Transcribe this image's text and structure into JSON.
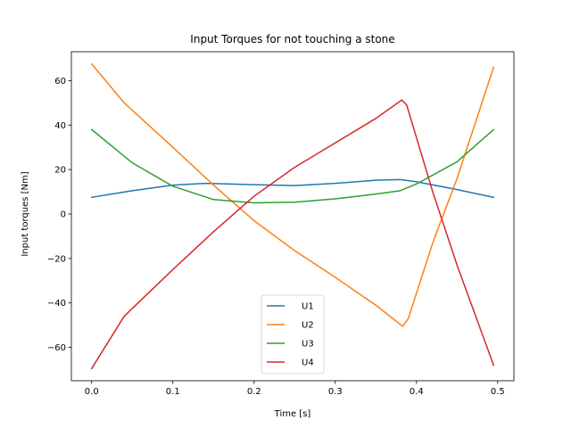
{
  "chart_data": {
    "type": "line",
    "title": "Input Torques for not touching a stone",
    "xlabel": "Time [s]",
    "ylabel": "Input torques [Nm]",
    "xlim": [
      -0.025,
      0.52
    ],
    "ylim": [
      -75,
      73
    ],
    "xticks": [
      0.0,
      0.1,
      0.2,
      0.3,
      0.4,
      0.5
    ],
    "xtick_labels": [
      "0.0",
      "0.1",
      "0.2",
      "0.3",
      "0.4",
      "0.5"
    ],
    "yticks": [
      -60,
      -40,
      -20,
      0,
      20,
      40,
      60
    ],
    "ytick_labels": [
      "−60",
      "−40",
      "−20",
      "0",
      "20",
      "40",
      "60"
    ],
    "grid": false,
    "legend_position": "bottom-center",
    "series": [
      {
        "name": "U1",
        "color": "#1f77b4",
        "x": [
          0.0,
          0.05,
          0.1,
          0.14,
          0.2,
          0.25,
          0.3,
          0.35,
          0.38,
          0.4,
          0.45,
          0.495
        ],
        "y": [
          7.5,
          10.5,
          13,
          13.8,
          13.2,
          12.8,
          13.8,
          15.2,
          15.5,
          14.5,
          11,
          7.5
        ]
      },
      {
        "name": "U2",
        "color": "#ff7f0e",
        "x": [
          0.0,
          0.04,
          0.1,
          0.15,
          0.2,
          0.25,
          0.3,
          0.35,
          0.383,
          0.39,
          0.42,
          0.45,
          0.495
        ],
        "y": [
          67.5,
          50,
          30,
          13,
          -3,
          -16.5,
          -28.5,
          -41,
          -50.5,
          -47,
          -13,
          16,
          66
        ]
      },
      {
        "name": "U3",
        "color": "#2ca02c",
        "x": [
          0.0,
          0.05,
          0.1,
          0.15,
          0.2,
          0.25,
          0.3,
          0.35,
          0.38,
          0.4,
          0.45,
          0.495
        ],
        "y": [
          38,
          23,
          12.5,
          6.5,
          5,
          5.3,
          6.8,
          9,
          10.5,
          13.5,
          23.5,
          38
        ]
      },
      {
        "name": "U4",
        "color": "#d62728",
        "x": [
          0.0,
          0.04,
          0.05,
          0.1,
          0.15,
          0.2,
          0.25,
          0.3,
          0.35,
          0.382,
          0.388,
          0.42,
          0.45,
          0.495
        ],
        "y": [
          -69.5,
          -46,
          -42.5,
          -25,
          -8,
          8,
          21,
          32,
          43,
          51.3,
          49,
          10,
          -23,
          -68
        ]
      }
    ]
  }
}
